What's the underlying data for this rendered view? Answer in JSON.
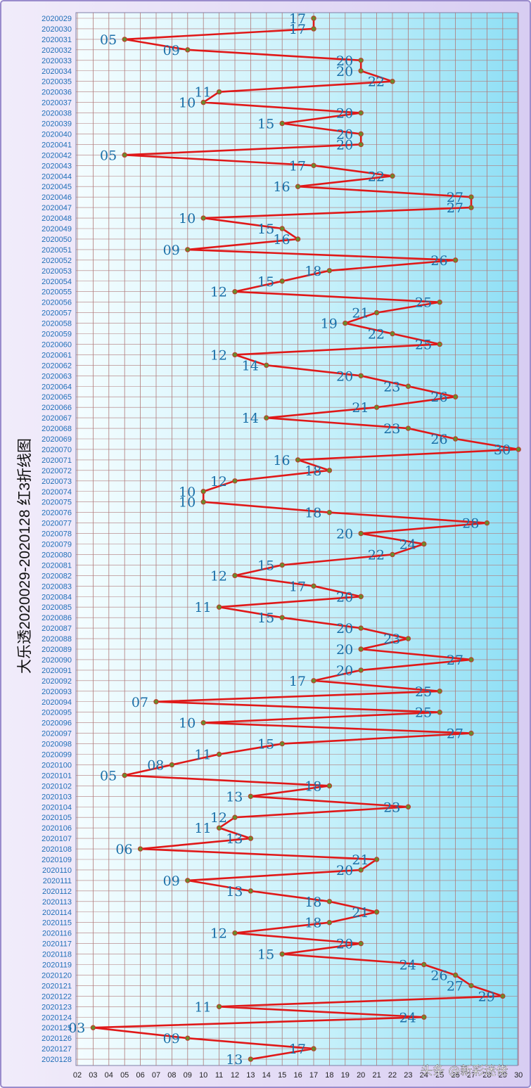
{
  "chart_data": {
    "type": "line",
    "title": "大乐透2020029-2020128  红3折线图",
    "xlabel": "",
    "ylabel": "",
    "x_ticks": [
      "02",
      "03",
      "04",
      "05",
      "06",
      "07",
      "08",
      "09",
      "10",
      "11",
      "12",
      "13",
      "14",
      "15",
      "16",
      "17",
      "18",
      "19",
      "20",
      "21",
      "22",
      "23",
      "24",
      "25",
      "26",
      "27",
      "28",
      "29",
      "30"
    ],
    "xlim": [
      2,
      30
    ],
    "grid": true,
    "periods": [
      "2020029",
      "2020030",
      "2020031",
      "2020032",
      "2020033",
      "2020034",
      "2020035",
      "2020036",
      "2020037",
      "2020038",
      "2020039",
      "2020040",
      "2020041",
      "2020042",
      "2020043",
      "2020044",
      "2020045",
      "2020046",
      "2020047",
      "2020048",
      "2020049",
      "2020050",
      "2020051",
      "2020052",
      "2020053",
      "2020054",
      "2020055",
      "2020056",
      "2020057",
      "2020058",
      "2020059",
      "2020060",
      "2020061",
      "2020062",
      "2020063",
      "2020064",
      "2020065",
      "2020066",
      "2020067",
      "2020068",
      "2020069",
      "2020070",
      "2020071",
      "2020072",
      "2020073",
      "2020074",
      "2020075",
      "2020076",
      "2020077",
      "2020078",
      "2020079",
      "2020080",
      "2020081",
      "2020082",
      "2020083",
      "2020084",
      "2020085",
      "2020086",
      "2020087",
      "2020088",
      "2020089",
      "2020090",
      "2020091",
      "2020092",
      "2020093",
      "2020094",
      "2020095",
      "2020096",
      "2020097",
      "2020098",
      "2020099",
      "2020100",
      "2020101",
      "2020102",
      "2020103",
      "2020104",
      "2020105",
      "2020106",
      "2020107",
      "2020108",
      "2020109",
      "2020110",
      "2020111",
      "2020112",
      "2020113",
      "2020114",
      "2020115",
      "2020116",
      "2020117",
      "2020118",
      "2020119",
      "2020120",
      "2020121",
      "2020122",
      "2020123",
      "2020124",
      "2020125",
      "2020126",
      "2020127",
      "2020128"
    ],
    "values": [
      17,
      17,
      5,
      9,
      20,
      20,
      22,
      11,
      10,
      20,
      15,
      20,
      20,
      5,
      17,
      22,
      16,
      27,
      27,
      10,
      15,
      16,
      9,
      26,
      18,
      15,
      12,
      25,
      21,
      19,
      22,
      25,
      12,
      14,
      20,
      23,
      26,
      21,
      14,
      23,
      26,
      30,
      16,
      18,
      12,
      10,
      10,
      18,
      28,
      20,
      24,
      22,
      15,
      12,
      17,
      20,
      11,
      15,
      20,
      23,
      20,
      27,
      20,
      17,
      25,
      7,
      25,
      10,
      27,
      15,
      11,
      8,
      5,
      18,
      13,
      23,
      12,
      11,
      13,
      6,
      21,
      20,
      9,
      13,
      18,
      21,
      18,
      12,
      20,
      15,
      24,
      26,
      27,
      29,
      11,
      24,
      3,
      9,
      17,
      13
    ],
    "series": [
      {
        "name": "红3",
        "color": "#e01818"
      }
    ]
  },
  "watermark": "头条 @新彩迷佬",
  "colors": {
    "line": "#e01818",
    "point_fill": "#6b8a2a",
    "label": "#1a6fa8",
    "period_label": "#1f6eb8",
    "grid": "#b07a7a",
    "frame_border": "#9a8ccc"
  }
}
